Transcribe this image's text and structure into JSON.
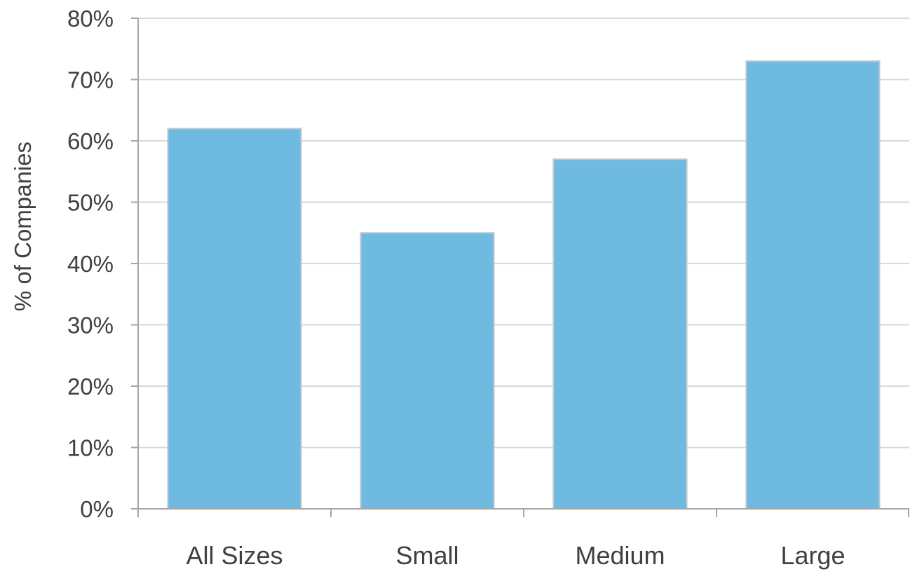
{
  "chart_data": {
    "type": "bar",
    "title": "",
    "xlabel": "",
    "ylabel": "% of Companies",
    "categories": [
      "All Sizes",
      "Small",
      "Medium",
      "Large"
    ],
    "values": [
      62,
      45,
      57,
      73
    ],
    "value_format": "percent",
    "ylim": [
      0,
      80
    ],
    "yticks": [
      0,
      10,
      20,
      30,
      40,
      50,
      60,
      70,
      80
    ],
    "ytick_labels": [
      "0%",
      "10%",
      "20%",
      "30%",
      "40%",
      "50%",
      "60%",
      "70%",
      "80%"
    ],
    "grid": true,
    "legend": "none",
    "colors": {
      "bar_fill": "#6EBAE1",
      "bar_stroke": "#BFC6CC",
      "grid": "#D9D9D9",
      "axis": "#A6A6A6",
      "text": "#404040"
    }
  }
}
